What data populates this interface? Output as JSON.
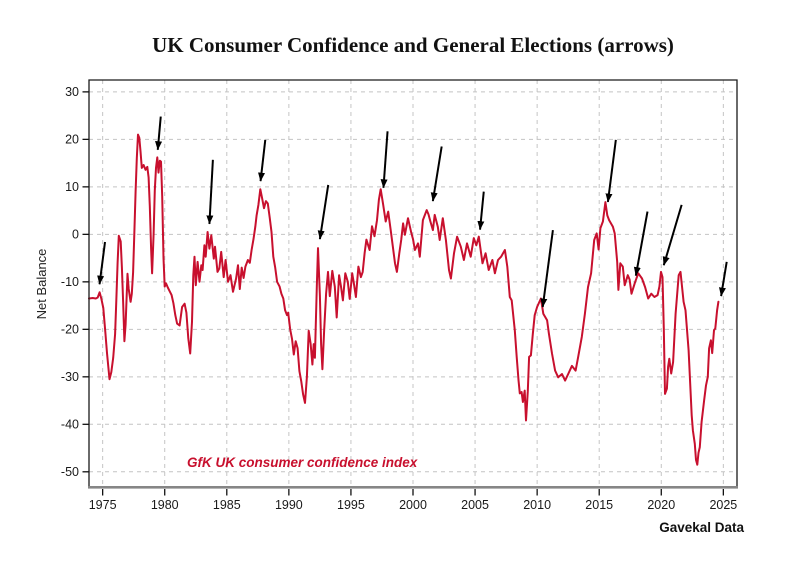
{
  "title": "UK Consumer Confidence and General Elections (arrows)",
  "source": "Gavekal Data",
  "chart_data": {
    "type": "line",
    "title": "UK Consumer Confidence and General Elections (arrows)",
    "xlabel": "",
    "ylabel": "Net Balance",
    "series_label": "GfK UK consumer confidence index",
    "line_color": "#C8102E",
    "arrow_color": "#000000",
    "grid": true,
    "grid_color": "#c4c4c4",
    "xlim": [
      1973.9,
      2026.1
    ],
    "ylim": [
      -53.2,
      32.5
    ],
    "x_ticks": [
      1975,
      1980,
      1985,
      1990,
      1995,
      2000,
      2005,
      2010,
      2015,
      2020,
      2025
    ],
    "y_ticks": [
      30,
      20,
      10,
      0,
      -10,
      -20,
      -30,
      -40,
      -50
    ],
    "election_arrows_note": "black arrows mark UK general elections; format [tail_year, tail_value, tip_year, tip_value]",
    "arrows": [
      [
        1975.19,
        -1.6,
        1974.75,
        -10.5
      ],
      [
        1979.68,
        24.8,
        1979.44,
        17.8
      ],
      [
        1983.88,
        15.7,
        1983.6,
        2.2
      ],
      [
        1988.1,
        19.9,
        1987.72,
        11.2
      ],
      [
        1993.17,
        10.4,
        1992.5,
        -1.0
      ],
      [
        1997.95,
        21.7,
        1997.62,
        9.8
      ],
      [
        2002.31,
        18.5,
        2001.6,
        7.0
      ],
      [
        2005.7,
        9.0,
        2005.4,
        1.0
      ],
      [
        2011.27,
        0.9,
        2010.45,
        -15.3
      ],
      [
        2016.34,
        19.9,
        2015.7,
        6.8
      ],
      [
        2018.89,
        4.8,
        2017.95,
        -8.7
      ],
      [
        2021.64,
        6.2,
        2020.2,
        -6.5
      ],
      [
        2025.27,
        -5.8,
        2024.82,
        -13.0
      ]
    ],
    "points": [
      [
        1973.9,
        -13.5
      ],
      [
        1974.2,
        -13.4
      ],
      [
        1974.45,
        -13.5
      ],
      [
        1974.6,
        -13.3
      ],
      [
        1974.75,
        -12.2
      ],
      [
        1974.9,
        -13.6
      ],
      [
        1975.05,
        -15.5
      ],
      [
        1975.2,
        -20.0
      ],
      [
        1975.35,
        -25.0
      ],
      [
        1975.55,
        -30.5
      ],
      [
        1975.7,
        -29.0
      ],
      [
        1975.85,
        -26.0
      ],
      [
        1976.0,
        -21.0
      ],
      [
        1976.1,
        -14.0
      ],
      [
        1976.2,
        -6.0
      ],
      [
        1976.3,
        -0.3
      ],
      [
        1976.45,
        -1.5
      ],
      [
        1976.55,
        -7.0
      ],
      [
        1976.65,
        -14.0
      ],
      [
        1976.75,
        -22.5
      ],
      [
        1976.85,
        -19.0
      ],
      [
        1977.0,
        -8.3
      ],
      [
        1977.1,
        -11.5
      ],
      [
        1977.25,
        -14.2
      ],
      [
        1977.35,
        -12.5
      ],
      [
        1977.45,
        -8.0
      ],
      [
        1977.55,
        0.0
      ],
      [
        1977.65,
        9.0
      ],
      [
        1977.75,
        16.0
      ],
      [
        1977.85,
        21.0
      ],
      [
        1977.95,
        20.3
      ],
      [
        1978.05,
        17.5
      ],
      [
        1978.15,
        14.0
      ],
      [
        1978.3,
        14.6
      ],
      [
        1978.45,
        13.6
      ],
      [
        1978.6,
        14.2
      ],
      [
        1978.7,
        12.0
      ],
      [
        1978.8,
        6.0
      ],
      [
        1978.9,
        -3.0
      ],
      [
        1978.98,
        -8.2
      ],
      [
        1979.1,
        0.0
      ],
      [
        1979.2,
        9.3
      ],
      [
        1979.3,
        14.0
      ],
      [
        1979.4,
        16.2
      ],
      [
        1979.5,
        13.0
      ],
      [
        1979.6,
        15.5
      ],
      [
        1979.7,
        15.3
      ],
      [
        1979.8,
        8.0
      ],
      [
        1979.9,
        -5.0
      ],
      [
        1980.0,
        -11.0
      ],
      [
        1980.1,
        -10.3
      ],
      [
        1980.25,
        -11.2
      ],
      [
        1980.4,
        -12.0
      ],
      [
        1980.55,
        -12.8
      ],
      [
        1980.7,
        -14.5
      ],
      [
        1980.85,
        -17.0
      ],
      [
        1981.0,
        -18.8
      ],
      [
        1981.2,
        -19.2
      ],
      [
        1981.4,
        -15.3
      ],
      [
        1981.6,
        -14.6
      ],
      [
        1981.75,
        -16.5
      ],
      [
        1981.9,
        -21.9
      ],
      [
        1982.05,
        -25.1
      ],
      [
        1982.2,
        -18.4
      ],
      [
        1982.3,
        -8.6
      ],
      [
        1982.4,
        -4.7
      ],
      [
        1982.5,
        -10.7
      ],
      [
        1982.65,
        -5.8
      ],
      [
        1982.8,
        -10.0
      ],
      [
        1982.95,
        -6.5
      ],
      [
        1983.05,
        -7.5
      ],
      [
        1983.2,
        -2.3
      ],
      [
        1983.3,
        -4.7
      ],
      [
        1983.45,
        0.5
      ],
      [
        1983.6,
        -3.0
      ],
      [
        1983.75,
        -0.2
      ],
      [
        1983.95,
        -5.1
      ],
      [
        1984.05,
        -2.6
      ],
      [
        1984.25,
        -7.9
      ],
      [
        1984.4,
        -7.2
      ],
      [
        1984.55,
        -3.7
      ],
      [
        1984.75,
        -9.0
      ],
      [
        1984.9,
        -5.4
      ],
      [
        1985.1,
        -10.0
      ],
      [
        1985.3,
        -8.6
      ],
      [
        1985.5,
        -12.1
      ],
      [
        1985.75,
        -9.3
      ],
      [
        1985.9,
        -6.5
      ],
      [
        1986.05,
        -11.5
      ],
      [
        1986.2,
        -7.0
      ],
      [
        1986.35,
        -9.2
      ],
      [
        1986.5,
        -6.8
      ],
      [
        1986.7,
        -5.4
      ],
      [
        1986.85,
        -6.0
      ],
      [
        1987.0,
        -3.3
      ],
      [
        1987.15,
        -1.0
      ],
      [
        1987.3,
        1.6
      ],
      [
        1987.4,
        4.0
      ],
      [
        1987.55,
        6.2
      ],
      [
        1987.7,
        9.5
      ],
      [
        1987.85,
        7.5
      ],
      [
        1988.0,
        5.5
      ],
      [
        1988.15,
        7.0
      ],
      [
        1988.3,
        6.5
      ],
      [
        1988.45,
        3.7
      ],
      [
        1988.6,
        0.5
      ],
      [
        1988.75,
        -4.7
      ],
      [
        1988.9,
        -7.0
      ],
      [
        1989.05,
        -10.0
      ],
      [
        1989.25,
        -11.0
      ],
      [
        1989.4,
        -12.5
      ],
      [
        1989.55,
        -13.5
      ],
      [
        1989.7,
        -16.0
      ],
      [
        1989.85,
        -17.0
      ],
      [
        1989.95,
        -16.5
      ],
      [
        1990.1,
        -19.9
      ],
      [
        1990.25,
        -22.0
      ],
      [
        1990.4,
        -25.3
      ],
      [
        1990.55,
        -22.5
      ],
      [
        1990.7,
        -24.0
      ],
      [
        1990.85,
        -28.8
      ],
      [
        1991.0,
        -31.0
      ],
      [
        1991.15,
        -33.7
      ],
      [
        1991.3,
        -35.5
      ],
      [
        1991.45,
        -30.0
      ],
      [
        1991.6,
        -20.3
      ],
      [
        1991.75,
        -23.0
      ],
      [
        1991.9,
        -27.4
      ],
      [
        1992.0,
        -23.1
      ],
      [
        1992.1,
        -26.0
      ],
      [
        1992.25,
        -11.1
      ],
      [
        1992.35,
        -2.9
      ],
      [
        1992.5,
        -13.0
      ],
      [
        1992.6,
        -23.1
      ],
      [
        1992.7,
        -28.4
      ],
      [
        1992.85,
        -20.0
      ],
      [
        1993.0,
        -12.5
      ],
      [
        1993.15,
        -7.9
      ],
      [
        1993.3,
        -13.0
      ],
      [
        1993.5,
        -7.7
      ],
      [
        1993.7,
        -11.0
      ],
      [
        1993.85,
        -17.5
      ],
      [
        1994.05,
        -8.6
      ],
      [
        1994.2,
        -11.0
      ],
      [
        1994.35,
        -13.9
      ],
      [
        1994.55,
        -8.2
      ],
      [
        1994.75,
        -10.0
      ],
      [
        1994.9,
        -13.6
      ],
      [
        1995.1,
        -8.2
      ],
      [
        1995.25,
        -10.5
      ],
      [
        1995.4,
        -13.2
      ],
      [
        1995.6,
        -6.8
      ],
      [
        1995.8,
        -9.0
      ],
      [
        1995.95,
        -7.9
      ],
      [
        1996.1,
        -4.0
      ],
      [
        1996.25,
        -1.1
      ],
      [
        1996.5,
        -3.3
      ],
      [
        1996.7,
        1.7
      ],
      [
        1996.9,
        -0.4
      ],
      [
        1997.1,
        3.0
      ],
      [
        1997.25,
        7.3
      ],
      [
        1997.4,
        9.5
      ],
      [
        1997.6,
        6.2
      ],
      [
        1997.8,
        2.7
      ],
      [
        1998.0,
        4.8
      ],
      [
        1998.2,
        0.9
      ],
      [
        1998.4,
        -3.0
      ],
      [
        1998.55,
        -6.1
      ],
      [
        1998.7,
        -7.9
      ],
      [
        1998.9,
        -4.0
      ],
      [
        1999.05,
        -1.2
      ],
      [
        1999.2,
        2.3
      ],
      [
        1999.35,
        -0.1
      ],
      [
        1999.6,
        3.4
      ],
      [
        1999.85,
        0.5
      ],
      [
        2000.0,
        -1.0
      ],
      [
        2000.15,
        -3.3
      ],
      [
        2000.4,
        -1.9
      ],
      [
        2000.55,
        -4.7
      ],
      [
        2000.8,
        3.0
      ],
      [
        2001.1,
        5.1
      ],
      [
        2001.25,
        4.2
      ],
      [
        2001.4,
        2.7
      ],
      [
        2001.6,
        0.9
      ],
      [
        2001.75,
        4.1
      ],
      [
        2002.0,
        1.6
      ],
      [
        2002.15,
        -1.2
      ],
      [
        2002.4,
        3.4
      ],
      [
        2002.65,
        -1.2
      ],
      [
        2002.9,
        -7.5
      ],
      [
        2003.05,
        -9.3
      ],
      [
        2003.3,
        -4.0
      ],
      [
        2003.55,
        -0.5
      ],
      [
        2003.85,
        -2.6
      ],
      [
        2004.1,
        -5.4
      ],
      [
        2004.35,
        -1.9
      ],
      [
        2004.65,
        -4.7
      ],
      [
        2004.9,
        -0.8
      ],
      [
        2005.1,
        -2.3
      ],
      [
        2005.3,
        -0.5
      ],
      [
        2005.6,
        -6.1
      ],
      [
        2005.85,
        -4.0
      ],
      [
        2006.1,
        -7.5
      ],
      [
        2006.4,
        -5.4
      ],
      [
        2006.6,
        -8.2
      ],
      [
        2006.85,
        -5.4
      ],
      [
        2007.1,
        -4.7
      ],
      [
        2007.4,
        -3.3
      ],
      [
        2007.6,
        -6.8
      ],
      [
        2007.8,
        -13.2
      ],
      [
        2007.95,
        -13.9
      ],
      [
        2008.2,
        -20.2
      ],
      [
        2008.35,
        -25.8
      ],
      [
        2008.5,
        -30.7
      ],
      [
        2008.6,
        -33.5
      ],
      [
        2008.75,
        -33.2
      ],
      [
        2008.85,
        -35.3
      ],
      [
        2009.0,
        -32.9
      ],
      [
        2009.1,
        -39.2
      ],
      [
        2009.25,
        -33.0
      ],
      [
        2009.35,
        -25.8
      ],
      [
        2009.5,
        -25.5
      ],
      [
        2009.65,
        -21.0
      ],
      [
        2009.8,
        -17.0
      ],
      [
        2010.0,
        -15.3
      ],
      [
        2010.3,
        -13.5
      ],
      [
        2010.5,
        -16.7
      ],
      [
        2010.8,
        -18.1
      ],
      [
        2010.95,
        -20.9
      ],
      [
        2011.2,
        -25.1
      ],
      [
        2011.45,
        -28.7
      ],
      [
        2011.7,
        -30.1
      ],
      [
        2012.0,
        -29.4
      ],
      [
        2012.25,
        -30.8
      ],
      [
        2012.5,
        -29.4
      ],
      [
        2012.8,
        -27.7
      ],
      [
        2013.1,
        -28.7
      ],
      [
        2013.3,
        -25.9
      ],
      [
        2013.6,
        -21.6
      ],
      [
        2013.85,
        -16.7
      ],
      [
        2014.1,
        -11.1
      ],
      [
        2014.35,
        -8.2
      ],
      [
        2014.6,
        -1.2
      ],
      [
        2014.8,
        0.2
      ],
      [
        2014.95,
        -3.2
      ],
      [
        2015.1,
        1.3
      ],
      [
        2015.3,
        2.7
      ],
      [
        2015.5,
        6.8
      ],
      [
        2015.65,
        4.0
      ],
      [
        2015.8,
        3.0
      ],
      [
        2016.1,
        1.6
      ],
      [
        2016.25,
        0.2
      ],
      [
        2016.45,
        -5.8
      ],
      [
        2016.55,
        -11.7
      ],
      [
        2016.7,
        -6.1
      ],
      [
        2016.9,
        -6.8
      ],
      [
        2017.05,
        -10.7
      ],
      [
        2017.3,
        -8.6
      ],
      [
        2017.45,
        -9.5
      ],
      [
        2017.6,
        -12.5
      ],
      [
        2017.9,
        -10.0
      ],
      [
        2018.15,
        -8.2
      ],
      [
        2018.45,
        -9.3
      ],
      [
        2018.7,
        -11.1
      ],
      [
        2018.95,
        -13.5
      ],
      [
        2019.2,
        -12.5
      ],
      [
        2019.45,
        -13.2
      ],
      [
        2019.7,
        -12.8
      ],
      [
        2019.85,
        -11.0
      ],
      [
        2019.98,
        -7.9
      ],
      [
        2020.1,
        -9.0
      ],
      [
        2020.2,
        -19.8
      ],
      [
        2020.3,
        -33.6
      ],
      [
        2020.45,
        -32.5
      ],
      [
        2020.55,
        -27.9
      ],
      [
        2020.65,
        -26.2
      ],
      [
        2020.8,
        -29.3
      ],
      [
        2020.95,
        -26.9
      ],
      [
        2021.15,
        -16.7
      ],
      [
        2021.4,
        -8.6
      ],
      [
        2021.55,
        -7.9
      ],
      [
        2021.8,
        -14.2
      ],
      [
        2021.95,
        -16.0
      ],
      [
        2022.2,
        -24.4
      ],
      [
        2022.45,
        -38.1
      ],
      [
        2022.55,
        -41.3
      ],
      [
        2022.7,
        -44.1
      ],
      [
        2022.8,
        -47.5
      ],
      [
        2022.9,
        -48.5
      ],
      [
        2023.0,
        -46.0
      ],
      [
        2023.1,
        -44.8
      ],
      [
        2023.25,
        -39.5
      ],
      [
        2023.45,
        -35.0
      ],
      [
        2023.6,
        -31.8
      ],
      [
        2023.75,
        -30.0
      ],
      [
        2023.85,
        -24.0
      ],
      [
        2024.0,
        -22.3
      ],
      [
        2024.1,
        -25.0
      ],
      [
        2024.25,
        -20.2
      ],
      [
        2024.35,
        -19.8
      ],
      [
        2024.5,
        -16.0
      ],
      [
        2024.6,
        -14.2
      ]
    ]
  }
}
